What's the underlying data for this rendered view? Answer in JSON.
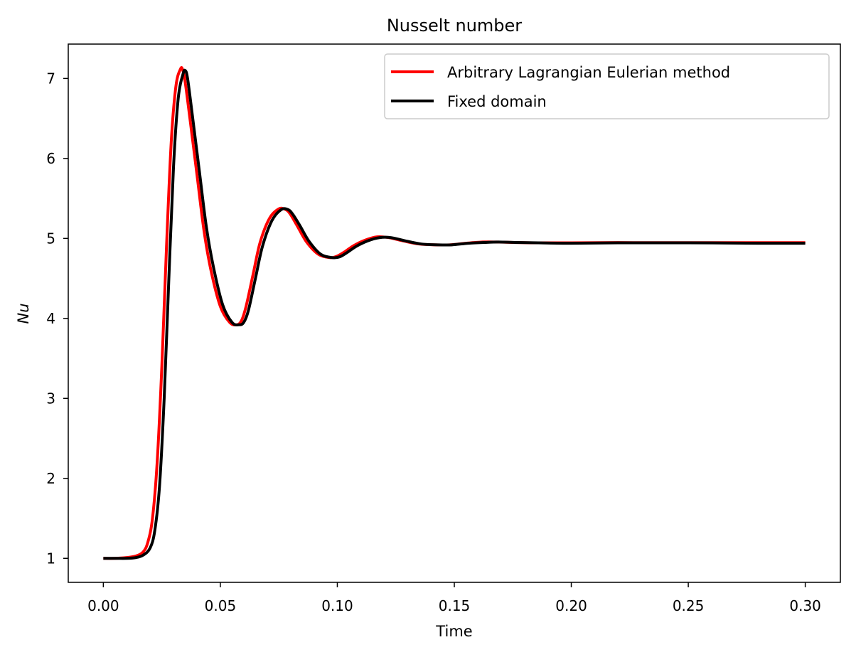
{
  "chart_data": {
    "type": "line",
    "title": "Nusselt number",
    "xlabel": "Time",
    "ylabel": "Nu",
    "xlim": [
      -0.015,
      0.315
    ],
    "ylim": [
      0.7,
      7.43
    ],
    "xticks": [
      "0.00",
      "0.05",
      "0.10",
      "0.15",
      "0.20",
      "0.25",
      "0.30"
    ],
    "yticks": [
      "1",
      "2",
      "3",
      "4",
      "5",
      "6",
      "7"
    ],
    "grid": false,
    "legend_position": "top-right",
    "colors": {
      "ale": "#ff0000",
      "fixed": "#000000"
    },
    "series": [
      {
        "name": "Arbitrary Lagrangian Eulerian method",
        "color": "#ff0000",
        "x": [
          0.0,
          0.005,
          0.01,
          0.014,
          0.017,
          0.019,
          0.021,
          0.023,
          0.025,
          0.027,
          0.029,
          0.031,
          0.033,
          0.034,
          0.035,
          0.037,
          0.04,
          0.043,
          0.046,
          0.05,
          0.054,
          0.057,
          0.059,
          0.061,
          0.064,
          0.067,
          0.071,
          0.075,
          0.078,
          0.08,
          0.083,
          0.087,
          0.092,
          0.097,
          0.1,
          0.103,
          0.107,
          0.112,
          0.117,
          0.122,
          0.128,
          0.135,
          0.142,
          0.148,
          0.155,
          0.162,
          0.168,
          0.175,
          0.185,
          0.2,
          0.22,
          0.25,
          0.28,
          0.3
        ],
        "y": [
          1.0,
          1.0,
          1.01,
          1.03,
          1.08,
          1.2,
          1.5,
          2.2,
          3.4,
          4.9,
          6.2,
          6.9,
          7.12,
          7.1,
          6.95,
          6.5,
          5.8,
          5.1,
          4.6,
          4.15,
          3.95,
          3.92,
          3.97,
          4.15,
          4.55,
          4.95,
          5.25,
          5.37,
          5.36,
          5.3,
          5.15,
          4.95,
          4.8,
          4.76,
          4.78,
          4.83,
          4.91,
          4.98,
          5.02,
          5.01,
          4.97,
          4.93,
          4.92,
          4.92,
          4.94,
          4.955,
          4.955,
          4.95,
          4.945,
          4.945,
          4.948,
          4.947,
          4.947,
          4.947
        ]
      },
      {
        "name": "Fixed domain",
        "color": "#000000",
        "x": [
          0.0,
          0.005,
          0.01,
          0.014,
          0.017,
          0.02,
          0.022,
          0.024,
          0.026,
          0.028,
          0.03,
          0.032,
          0.034,
          0.035,
          0.036,
          0.038,
          0.041,
          0.044,
          0.047,
          0.051,
          0.055,
          0.058,
          0.06,
          0.062,
          0.065,
          0.068,
          0.072,
          0.076,
          0.079,
          0.081,
          0.084,
          0.088,
          0.093,
          0.098,
          0.101,
          0.104,
          0.108,
          0.113,
          0.118,
          0.123,
          0.129,
          0.136,
          0.143,
          0.149,
          0.156,
          0.163,
          0.169,
          0.176,
          0.186,
          0.2,
          0.22,
          0.25,
          0.28,
          0.3
        ],
        "y": [
          1.0,
          1.0,
          1.0,
          1.01,
          1.04,
          1.13,
          1.35,
          1.9,
          3.0,
          4.5,
          5.9,
          6.75,
          7.05,
          7.1,
          7.0,
          6.55,
          5.85,
          5.15,
          4.65,
          4.17,
          3.95,
          3.92,
          3.95,
          4.1,
          4.5,
          4.9,
          5.22,
          5.36,
          5.36,
          5.3,
          5.16,
          4.96,
          4.8,
          4.76,
          4.77,
          4.82,
          4.9,
          4.97,
          5.01,
          5.01,
          4.97,
          4.93,
          4.92,
          4.92,
          4.94,
          4.95,
          4.955,
          4.95,
          4.945,
          4.94,
          4.945,
          4.945,
          4.94,
          4.94
        ]
      }
    ]
  }
}
